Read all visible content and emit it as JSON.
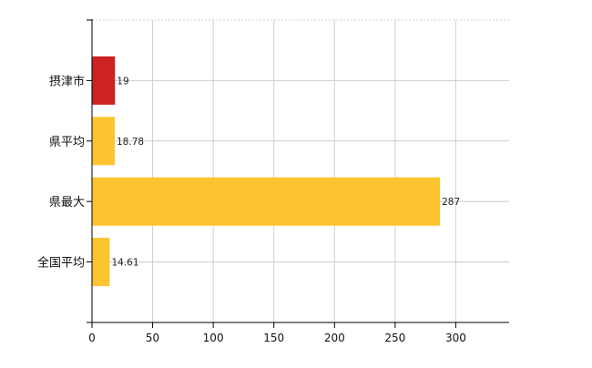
{
  "chart_data": {
    "type": "bar",
    "orientation": "horizontal",
    "categories": [
      "摂津市",
      "県平均",
      "県最大",
      "全国平均"
    ],
    "values": [
      19,
      18.78,
      287,
      14.61
    ],
    "data_labels": [
      "19",
      "18.78",
      "287",
      "14.61"
    ],
    "bar_colors": [
      "#cc2222",
      "#fcc42f",
      "#fcc42f",
      "#fcc42f"
    ],
    "title": "",
    "xlabel": "",
    "ylabel": "",
    "xlim": [
      0,
      344
    ],
    "xticks": [
      0,
      50,
      100,
      150,
      200,
      250,
      300
    ],
    "grid": true,
    "legend": "none"
  }
}
